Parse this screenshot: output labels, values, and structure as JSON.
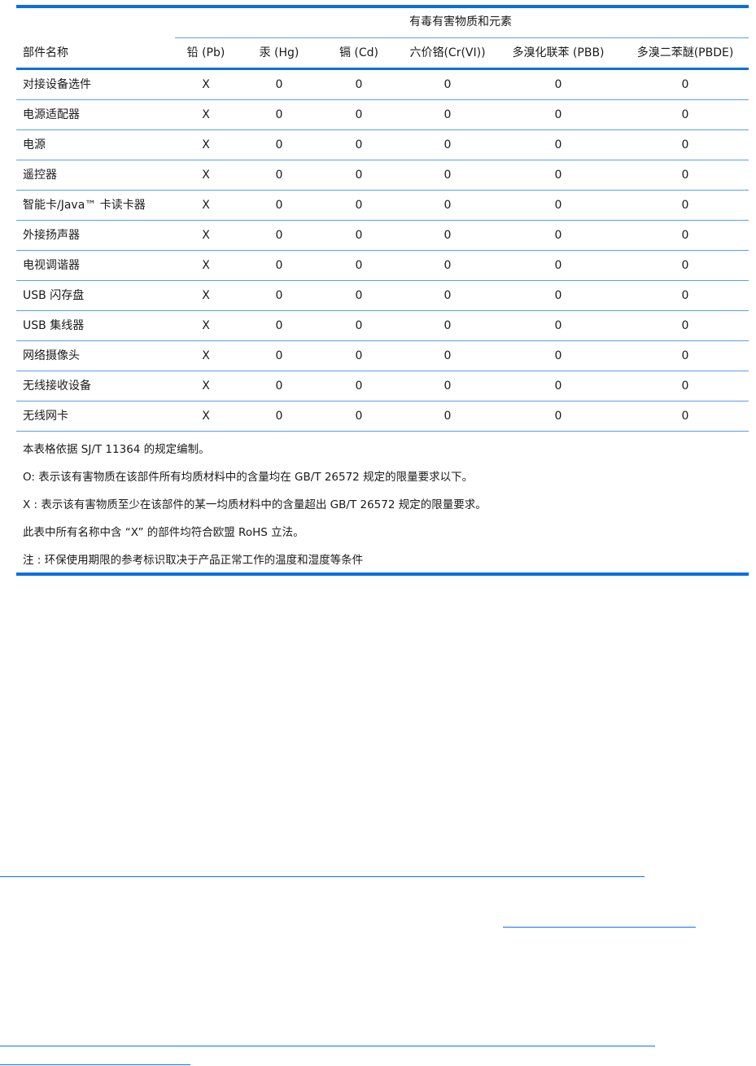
{
  "table": {
    "group_header": "有毒有害物质和元素",
    "columns": [
      "部件名称",
      "铅 (Pb)",
      "汞 (Hg)",
      "镉 (Cd)",
      "六价铬(Cr(VI))",
      "多溴化联苯 (PBB)",
      "多溴二苯醚(PBDE)"
    ],
    "rows": [
      [
        "对接设备选件",
        "X",
        "0",
        "0",
        "0",
        "0",
        "0"
      ],
      [
        "电源适配器",
        "X",
        "0",
        "0",
        "0",
        "0",
        "0"
      ],
      [
        "电源",
        "X",
        "0",
        "0",
        "0",
        "0",
        "0"
      ],
      [
        "遥控器",
        "X",
        "0",
        "0",
        "0",
        "0",
        "0"
      ],
      [
        "智能卡/Java™ 卡读卡器",
        "X",
        "0",
        "0",
        "0",
        "0",
        "0"
      ],
      [
        "外接扬声器",
        "X",
        "0",
        "0",
        "0",
        "0",
        "0"
      ],
      [
        "电视调谐器",
        "X",
        "0",
        "0",
        "0",
        "0",
        "0"
      ],
      [
        "USB 闪存盘",
        "X",
        "0",
        "0",
        "0",
        "0",
        "0"
      ],
      [
        "USB 集线器",
        "X",
        "0",
        "0",
        "0",
        "0",
        "0"
      ],
      [
        "网络摄像头",
        "X",
        "0",
        "0",
        "0",
        "0",
        "0"
      ],
      [
        "无线接收设备",
        "X",
        "0",
        "0",
        "0",
        "0",
        "0"
      ],
      [
        "无线网卡",
        "X",
        "0",
        "0",
        "0",
        "0",
        "0"
      ]
    ]
  },
  "notes": [
    "本表格依据 SJ/T 11364 的规定编制。",
    "O: 表示该有害物质在该部件所有均质材料中的含量均在 GB/T 26572 规定的限量要求以下。",
    "X : 表示该有害物质至少在该部件的某一均质材料中的含量超出 GB/T 26572 规定的限量要求。",
    "此表中所有名称中含 “X” 的部件均符合欧盟 RoHS 立法。",
    "注 : 环保使用期限的参考标识取决于产品正常工作的温度和湿度等条件"
  ],
  "colors": {
    "rule": "#0a6fe0",
    "link": "#0a6fff"
  }
}
